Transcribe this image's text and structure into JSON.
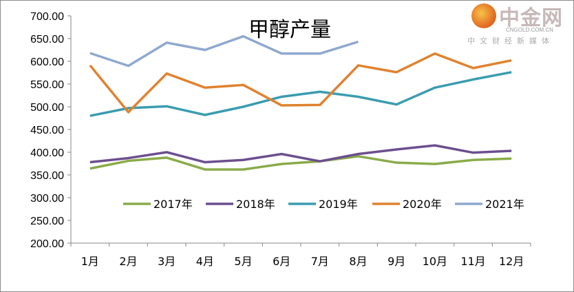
{
  "chart_data": {
    "type": "line",
    "title": "甲醇产量",
    "xlabel": "",
    "ylabel": "",
    "categories": [
      "1月",
      "2月",
      "3月",
      "4月",
      "5月",
      "6月",
      "7月",
      "8月",
      "9月",
      "10月",
      "11月",
      "12月"
    ],
    "ylim": [
      200,
      700
    ],
    "yticks": [
      "200.00",
      "250.00",
      "300.00",
      "350.00",
      "400.00",
      "450.00",
      "500.00",
      "550.00",
      "600.00",
      "650.00",
      "700.00"
    ],
    "legend_position": "inside-bottom",
    "grid": false,
    "series": [
      {
        "name": "2017年",
        "color": "#8aab4a",
        "values": [
          364,
          381,
          388,
          362,
          362,
          374,
          380,
          391,
          377,
          374,
          383,
          386
        ]
      },
      {
        "name": "2018年",
        "color": "#6c4f8f",
        "values": [
          378,
          387,
          400,
          378,
          383,
          396,
          380,
          396,
          406,
          415,
          399,
          403
        ]
      },
      {
        "name": "2019年",
        "color": "#3a9cb0",
        "values": [
          480,
          497,
          501,
          482,
          500,
          522,
          533,
          522,
          505,
          542,
          560,
          576
        ]
      },
      {
        "name": "2020年",
        "color": "#e0822f",
        "values": [
          591,
          488,
          573,
          542,
          548,
          503,
          504,
          591,
          576,
          617,
          585,
          602
        ]
      },
      {
        "name": "2021年",
        "color": "#8fa8d0",
        "values": [
          618,
          590,
          641,
          625,
          655,
          617,
          617,
          643,
          null,
          null,
          null,
          null
        ]
      }
    ]
  },
  "watermark": {
    "name": "中金网",
    "url": "CNGOLD.COM.CN",
    "slogan": "中文财经新媒体"
  }
}
